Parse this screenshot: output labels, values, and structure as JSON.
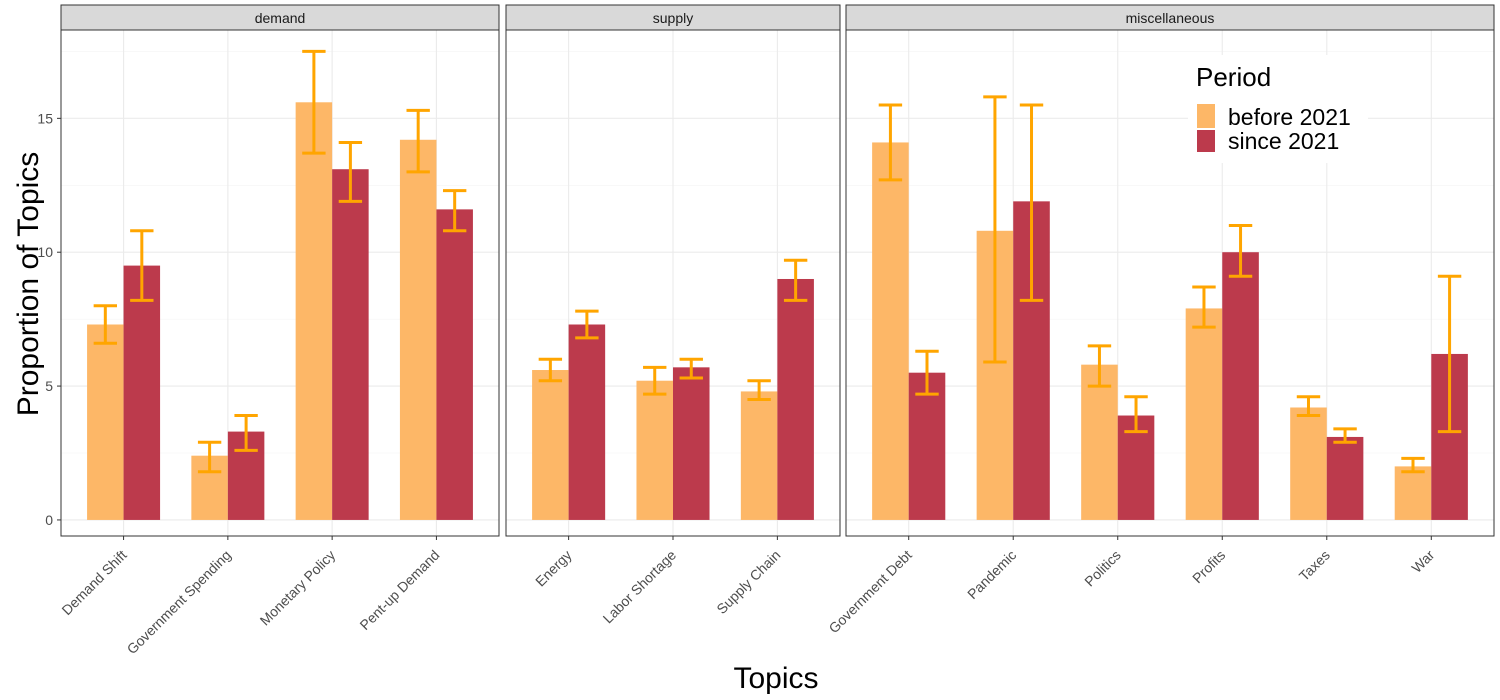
{
  "chart_data": {
    "type": "bar",
    "xlabel": "Topics",
    "ylabel": "Proportion of Topics",
    "ylim": [
      -0.6,
      18.3
    ],
    "yticks": [
      0,
      5,
      10,
      15
    ],
    "grid": true,
    "error_bars": true,
    "colors": {
      "before 2021": "#FDB767",
      "since 2021": "#BC3A4C",
      "error_bar": "#FFA500"
    },
    "legend": {
      "title": "Period",
      "position": "top-right",
      "entries": [
        "before 2021",
        "since 2021"
      ]
    },
    "facets": [
      {
        "name": "demand",
        "categories": [
          "Demand Shift",
          "Government Spending",
          "Monetary Policy",
          "Pent-up Demand"
        ],
        "series": [
          {
            "name": "before 2021",
            "values": [
              7.3,
              2.4,
              15.6,
              14.2
            ],
            "lower": [
              6.6,
              1.8,
              13.7,
              13.0
            ],
            "upper": [
              8.0,
              2.9,
              17.5,
              15.3
            ]
          },
          {
            "name": "since 2021",
            "values": [
              9.5,
              3.3,
              13.1,
              11.6
            ],
            "lower": [
              8.2,
              2.6,
              11.9,
              10.8
            ],
            "upper": [
              10.8,
              3.9,
              14.1,
              12.3
            ]
          }
        ]
      },
      {
        "name": "supply",
        "categories": [
          "Energy",
          "Labor Shortage",
          "Supply Chain"
        ],
        "series": [
          {
            "name": "before 2021",
            "values": [
              5.6,
              5.2,
              4.8
            ],
            "lower": [
              5.2,
              4.7,
              4.5
            ],
            "upper": [
              6.0,
              5.7,
              5.2
            ]
          },
          {
            "name": "since 2021",
            "values": [
              7.3,
              5.7,
              9.0
            ],
            "lower": [
              6.8,
              5.3,
              8.2
            ],
            "upper": [
              7.8,
              6.0,
              9.7
            ]
          }
        ]
      },
      {
        "name": "miscellaneous",
        "categories": [
          "Government Debt",
          "Pandemic",
          "Politics",
          "Profits",
          "Taxes",
          "War"
        ],
        "series": [
          {
            "name": "before 2021",
            "values": [
              14.1,
              10.8,
              5.8,
              7.9,
              4.2,
              2.0
            ],
            "lower": [
              12.7,
              5.9,
              5.0,
              7.2,
              3.9,
              1.8
            ],
            "upper": [
              15.5,
              15.8,
              6.5,
              8.7,
              4.6,
              2.3
            ]
          },
          {
            "name": "since 2021",
            "values": [
              5.5,
              11.9,
              3.9,
              10.0,
              3.1,
              6.2
            ],
            "lower": [
              4.7,
              8.2,
              3.3,
              9.1,
              2.9,
              3.3
            ],
            "upper": [
              6.3,
              15.5,
              4.6,
              11.0,
              3.4,
              9.1
            ]
          }
        ]
      }
    ]
  }
}
